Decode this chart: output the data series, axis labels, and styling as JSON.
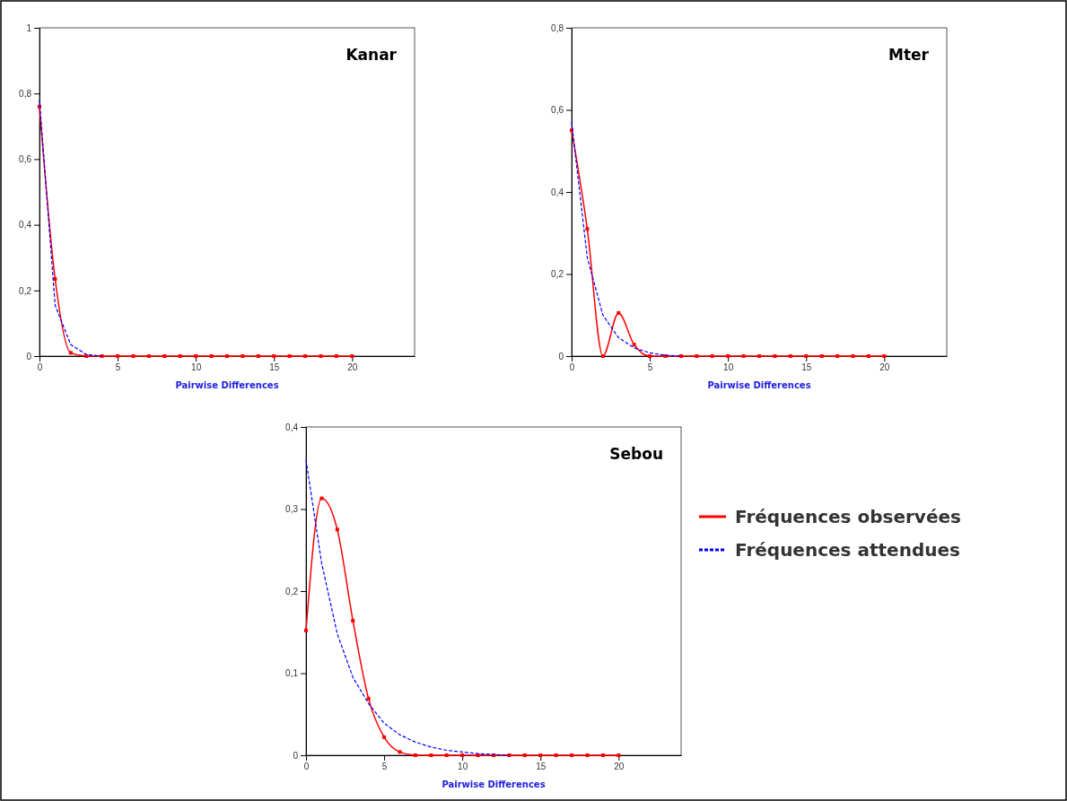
{
  "chart_data": [
    {
      "type": "line",
      "title": "Kanar",
      "xlabel": "Pairwise Differences",
      "x": [
        0,
        1,
        2,
        3,
        4,
        5,
        6,
        7,
        8,
        9,
        10,
        11,
        12,
        13,
        14,
        15,
        16,
        17,
        18,
        19,
        20
      ],
      "xlim": [
        0,
        24
      ],
      "xticks": [
        0,
        5,
        10,
        15,
        20
      ],
      "ylim": [
        0,
        1
      ],
      "yticks": [
        {
          "value": 0,
          "label": "0"
        },
        {
          "value": 0.2,
          "label": "0,2"
        },
        {
          "value": 0.4,
          "label": "0,4"
        },
        {
          "value": 0.6,
          "label": "0,6"
        },
        {
          "value": 0.8,
          "label": "0,8"
        },
        {
          "value": 1,
          "label": "1"
        }
      ],
      "series": [
        {
          "color": "#ff0000",
          "marker": "square",
          "line_style": "solid",
          "values": [
            0.76,
            0.235,
            0.01,
            0,
            0,
            0,
            0,
            0,
            0,
            0,
            0,
            0,
            0,
            0,
            0,
            0,
            0,
            0,
            0,
            0,
            0
          ]
        },
        {
          "color": "#0000ff",
          "marker": "none",
          "line_style": "dashed",
          "values": [
            0.78,
            0.155,
            0.035,
            0.005,
            0,
            null,
            null,
            null,
            null,
            null,
            null,
            null,
            null,
            null,
            null,
            null,
            null,
            null,
            null,
            null,
            null
          ]
        }
      ]
    },
    {
      "type": "line",
      "title": "Mter",
      "xlabel": "Pairwise Differences",
      "x": [
        0,
        1,
        2,
        3,
        4,
        5,
        6,
        7,
        8,
        9,
        10,
        11,
        12,
        13,
        14,
        15,
        16,
        17,
        18,
        19,
        20
      ],
      "xlim": [
        0,
        24
      ],
      "xticks": [
        0,
        5,
        10,
        15,
        20
      ],
      "ylim": [
        0,
        0.8
      ],
      "yticks": [
        {
          "value": 0,
          "label": "0"
        },
        {
          "value": 0.2,
          "label": "0,2"
        },
        {
          "value": 0.4,
          "label": "0,4"
        },
        {
          "value": 0.6,
          "label": "0,6"
        },
        {
          "value": 0.8,
          "label": "0,8"
        }
      ],
      "series": [
        {
          "color": "#ff0000",
          "marker": "square",
          "line_style": "solid",
          "values": [
            0.55,
            0.31,
            0,
            0.105,
            0.028,
            0,
            0,
            0,
            0,
            0,
            0,
            0,
            0,
            0,
            0,
            0,
            0,
            0,
            0,
            0,
            0
          ]
        },
        {
          "color": "#0000ff",
          "marker": "none",
          "line_style": "dashed",
          "values": [
            0.57,
            0.24,
            0.1,
            0.045,
            0.02,
            0.008,
            0.002,
            0,
            null,
            null,
            null,
            null,
            null,
            null,
            null,
            null,
            null,
            null,
            null,
            null,
            null
          ]
        }
      ]
    },
    {
      "type": "line",
      "title": "Sebou",
      "xlabel": "Pairwise Differences",
      "legend": "right",
      "x": [
        0,
        1,
        2,
        3,
        4,
        5,
        6,
        7,
        8,
        9,
        10,
        11,
        12,
        13,
        14,
        15,
        16,
        17,
        18,
        19,
        20
      ],
      "xlim": [
        0,
        24
      ],
      "xticks": [
        0,
        5,
        10,
        15,
        20
      ],
      "ylim": [
        0,
        0.4
      ],
      "yticks": [
        {
          "value": 0,
          "label": "0"
        },
        {
          "value": 0.1,
          "label": "0,1"
        },
        {
          "value": 0.2,
          "label": "0,2"
        },
        {
          "value": 0.3,
          "label": "0,3"
        },
        {
          "value": 0.4,
          "label": "0,4"
        }
      ],
      "series": [
        {
          "name": "Fréquences observées",
          "color": "#ff0000",
          "marker": "square",
          "line_style": "solid",
          "values": [
            0.152,
            0.313,
            0.275,
            0.164,
            0.069,
            0.022,
            0.004,
            0,
            0,
            0,
            0,
            0,
            0,
            0,
            0,
            0,
            0,
            0,
            0,
            0,
            0
          ]
        },
        {
          "name": "Fréquences attendues",
          "color": "#0000ff",
          "marker": "none",
          "line_style": "dashed",
          "values": [
            0.36,
            0.234,
            0.148,
            0.095,
            0.063,
            0.039,
            0.025,
            0.016,
            0.01,
            0.006,
            0.004,
            0.002,
            0.001,
            0,
            null,
            null,
            null,
            null,
            null,
            null,
            null
          ]
        }
      ]
    }
  ]
}
